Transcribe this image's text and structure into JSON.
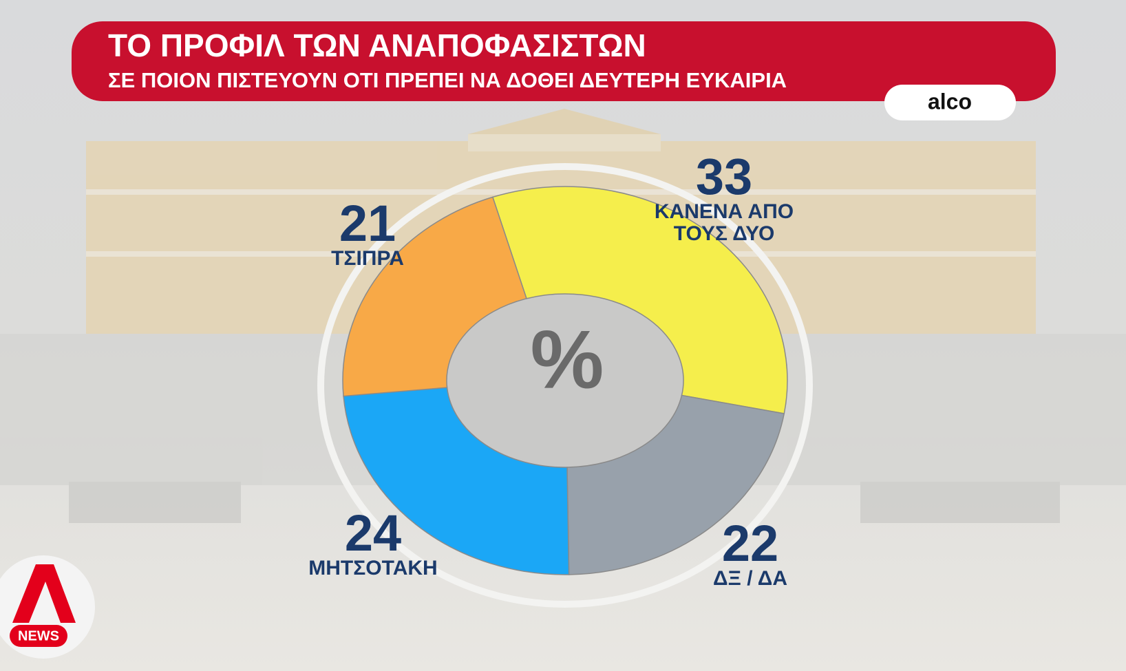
{
  "chart_data": {
    "type": "donut",
    "title": "ΤΟ ΠΡΟΦΙΛ ΤΩΝ ΑΝΑΠΟΦΑΣΙΣΤΩΝ",
    "subtitle": "ΣΕ ΠΟΙΟΝ ΠΙΣΤΕΥΟΥΝ ΟΤΙ ΠΡΕΠΕΙ ΝΑ ΔΟΘΕΙ ΔΕΥΤΕΡΗ ΕΥΚΑΙΡΙΑ",
    "source": "alco",
    "center_label": "%",
    "categories": [
      "ΚΑΝΕΝΑ ΑΠΟ ΤΟΥΣ ΔΥΟ",
      "ΔΞ / ΔΑ",
      "ΜΗΤΣΟΤΑΚΗ",
      "ΤΣΙΠΡΑ"
    ],
    "values": [
      33,
      22,
      24,
      21
    ],
    "colors": [
      "#f5ee4c",
      "#98a1ab",
      "#1ba7f6",
      "#f8a947"
    ]
  },
  "logo": {
    "text": "NEWS"
  }
}
